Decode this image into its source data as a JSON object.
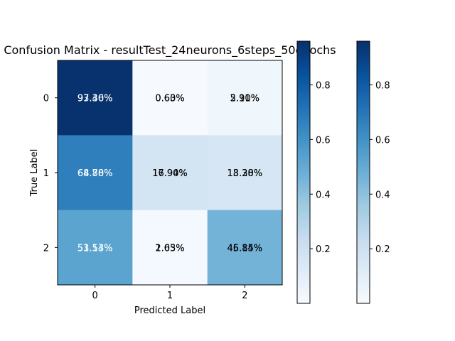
{
  "chart_data": {
    "type": "heatmap",
    "title": "Confusion Matrix - resultTest_24neurons_6steps_50epochs",
    "xlabel": "Predicted Label",
    "ylabel": "True Label",
    "x_categories": [
      "0",
      "1",
      "2"
    ],
    "y_categories": [
      "0",
      "1",
      "2"
    ],
    "values": [
      [
        0.9538,
        0.0062,
        0.04
      ],
      [
        0.6679,
        0.1742,
        0.1579
      ],
      [
        0.5234,
        0.0184,
        0.4582
      ]
    ],
    "cell_labels_layer1": [
      [
        "97.30%",
        "0.60%",
        "2.10%"
      ],
      [
        "68.80%",
        "17.90%",
        "13.30%"
      ],
      [
        "51.53%",
        "1.63%",
        "46.84%"
      ]
    ],
    "cell_labels_layer2": [
      [
        "93.46%",
        "0.63%",
        "5.91%"
      ],
      [
        "64.78%",
        "16.94%",
        "18.28%"
      ],
      [
        "53.14%",
        "2.05%",
        "45.15%"
      ]
    ],
    "colorbar": {
      "colormap": "Blues",
      "vmin": 0.0,
      "vmax": 0.96,
      "ticks": [
        "0.2",
        "0.4",
        "0.6",
        "0.8"
      ],
      "tick_values": [
        0.2,
        0.4,
        0.6,
        0.8
      ]
    },
    "colors": {
      "blues_low": "#f7fbff",
      "blues_high": "#08306b"
    }
  }
}
